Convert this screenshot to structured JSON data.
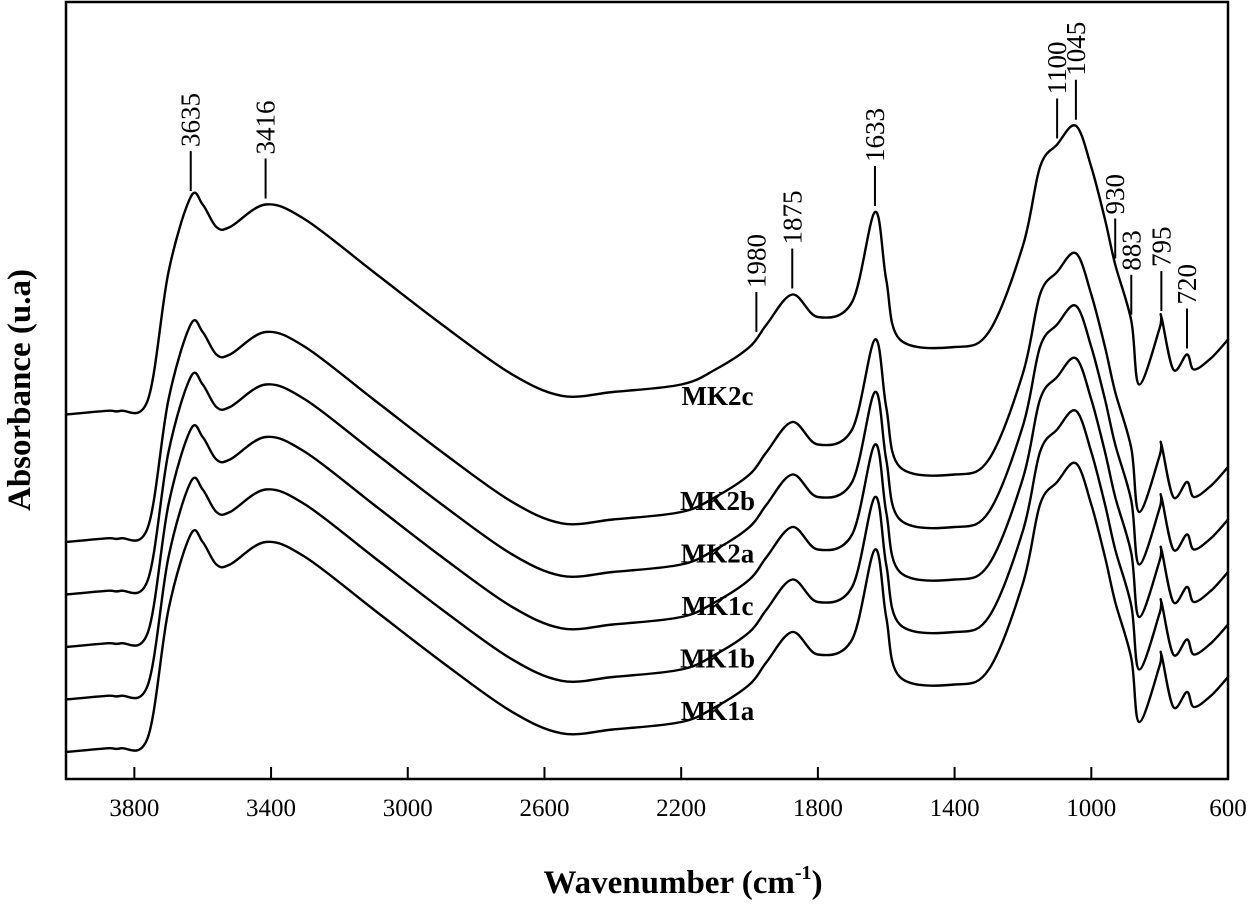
{
  "chart_data": {
    "type": "line",
    "title": "",
    "xlabel": "Wavenumber (cm",
    "xlabel_sup": "-1",
    "xlabel_end": ")",
    "ylabel": "Absorbance (u.a)",
    "xlim": [
      4000,
      600
    ],
    "x_reversed": true,
    "grid": false,
    "x_ticks": [
      3800,
      3400,
      3000,
      2600,
      2200,
      1800,
      1400,
      1000,
      600
    ],
    "y_ticks": [],
    "series": [
      {
        "name": "MK1a",
        "x": [
          4000,
          3880,
          3840,
          3760,
          3700,
          3635,
          3600,
          3560,
          3520,
          3416,
          3300,
          3100,
          2900,
          2700,
          2550,
          2400,
          2200,
          2100,
          2000,
          1950,
          1875,
          1800,
          1700,
          1633,
          1600,
          1560,
          1400,
          1300,
          1200,
          1150,
          1100,
          1045,
          1000,
          960,
          930,
          883,
          860,
          800,
          795,
          760,
          720,
          700,
          650,
          600
        ],
        "y": [
          0.0,
          0.01,
          0.01,
          0.04,
          0.38,
          0.58,
          0.56,
          0.5,
          0.5,
          0.56,
          0.52,
          0.38,
          0.24,
          0.11,
          0.05,
          0.06,
          0.08,
          0.12,
          0.18,
          0.24,
          0.32,
          0.26,
          0.3,
          0.54,
          0.36,
          0.2,
          0.18,
          0.22,
          0.45,
          0.66,
          0.72,
          0.77,
          0.66,
          0.52,
          0.4,
          0.25,
          0.08,
          0.23,
          0.26,
          0.12,
          0.16,
          0.12,
          0.15,
          0.2
        ]
      },
      {
        "name": "MK1b",
        "x": [
          4000,
          3880,
          3840,
          3760,
          3700,
          3635,
          3600,
          3560,
          3520,
          3416,
          3300,
          3100,
          2900,
          2700,
          2550,
          2400,
          2200,
          2100,
          2000,
          1950,
          1875,
          1800,
          1700,
          1633,
          1600,
          1560,
          1400,
          1300,
          1200,
          1150,
          1100,
          1045,
          1000,
          960,
          930,
          883,
          860,
          800,
          795,
          760,
          720,
          700,
          650,
          600
        ],
        "y": [
          0.14,
          0.15,
          0.15,
          0.18,
          0.52,
          0.72,
          0.7,
          0.64,
          0.64,
          0.7,
          0.66,
          0.52,
          0.38,
          0.25,
          0.19,
          0.2,
          0.22,
          0.26,
          0.32,
          0.38,
          0.46,
          0.4,
          0.44,
          0.68,
          0.5,
          0.34,
          0.32,
          0.36,
          0.59,
          0.8,
          0.86,
          0.91,
          0.8,
          0.66,
          0.54,
          0.39,
          0.22,
          0.37,
          0.4,
          0.26,
          0.3,
          0.26,
          0.29,
          0.34
        ]
      },
      {
        "name": "MK1c",
        "x": [
          4000,
          3880,
          3840,
          3760,
          3700,
          3635,
          3600,
          3560,
          3520,
          3416,
          3300,
          3100,
          2900,
          2700,
          2550,
          2400,
          2200,
          2100,
          2000,
          1950,
          1875,
          1800,
          1700,
          1633,
          1600,
          1560,
          1400,
          1300,
          1200,
          1150,
          1100,
          1045,
          1000,
          960,
          930,
          883,
          860,
          800,
          795,
          760,
          720,
          700,
          650,
          600
        ],
        "y": [
          0.28,
          0.29,
          0.29,
          0.32,
          0.66,
          0.86,
          0.84,
          0.78,
          0.78,
          0.84,
          0.8,
          0.66,
          0.52,
          0.39,
          0.33,
          0.34,
          0.36,
          0.4,
          0.46,
          0.52,
          0.6,
          0.54,
          0.58,
          0.82,
          0.64,
          0.48,
          0.46,
          0.5,
          0.73,
          0.94,
          1.0,
          1.05,
          0.94,
          0.8,
          0.68,
          0.53,
          0.36,
          0.51,
          0.54,
          0.4,
          0.44,
          0.4,
          0.43,
          0.48
        ]
      },
      {
        "name": "MK2a",
        "x": [
          4000,
          3880,
          3840,
          3760,
          3700,
          3635,
          3600,
          3560,
          3520,
          3416,
          3300,
          3100,
          2900,
          2700,
          2550,
          2400,
          2200,
          2100,
          2000,
          1950,
          1875,
          1800,
          1700,
          1633,
          1600,
          1560,
          1400,
          1300,
          1200,
          1150,
          1100,
          1045,
          1000,
          960,
          930,
          883,
          860,
          800,
          795,
          760,
          720,
          700,
          650,
          600
        ],
        "y": [
          0.42,
          0.43,
          0.43,
          0.46,
          0.8,
          1.0,
          0.98,
          0.92,
          0.92,
          0.98,
          0.94,
          0.8,
          0.66,
          0.53,
          0.47,
          0.48,
          0.5,
          0.54,
          0.6,
          0.66,
          0.74,
          0.68,
          0.72,
          0.96,
          0.78,
          0.62,
          0.6,
          0.64,
          0.87,
          1.08,
          1.14,
          1.19,
          1.08,
          0.94,
          0.82,
          0.67,
          0.5,
          0.65,
          0.68,
          0.54,
          0.58,
          0.54,
          0.57,
          0.62
        ]
      },
      {
        "name": "MK2b",
        "x": [
          4000,
          3880,
          3840,
          3760,
          3700,
          3635,
          3600,
          3560,
          3520,
          3416,
          3300,
          3100,
          2900,
          2700,
          2550,
          2400,
          2200,
          2100,
          2000,
          1950,
          1875,
          1800,
          1700,
          1633,
          1600,
          1560,
          1400,
          1300,
          1200,
          1150,
          1100,
          1045,
          1000,
          960,
          930,
          883,
          860,
          800,
          795,
          760,
          720,
          700,
          650,
          600
        ],
        "y": [
          0.56,
          0.57,
          0.57,
          0.6,
          0.94,
          1.14,
          1.12,
          1.06,
          1.06,
          1.12,
          1.08,
          0.94,
          0.8,
          0.67,
          0.61,
          0.62,
          0.64,
          0.68,
          0.74,
          0.8,
          0.88,
          0.82,
          0.86,
          1.1,
          0.92,
          0.76,
          0.74,
          0.78,
          1.01,
          1.22,
          1.28,
          1.33,
          1.22,
          1.08,
          0.96,
          0.81,
          0.64,
          0.79,
          0.82,
          0.68,
          0.72,
          0.68,
          0.71,
          0.76
        ]
      },
      {
        "name": "MK2c",
        "x": [
          4000,
          3880,
          3840,
          3760,
          3700,
          3635,
          3600,
          3560,
          3520,
          3416,
          3300,
          3100,
          2900,
          2700,
          2550,
          2400,
          2200,
          2100,
          2000,
          1950,
          1875,
          1800,
          1700,
          1633,
          1600,
          1560,
          1400,
          1300,
          1200,
          1150,
          1100,
          1045,
          1000,
          960,
          930,
          883,
          860,
          800,
          795,
          760,
          720,
          700,
          650,
          600
        ],
        "y": [
          0.9,
          0.91,
          0.91,
          0.94,
          1.28,
          1.48,
          1.46,
          1.4,
          1.4,
          1.46,
          1.42,
          1.28,
          1.14,
          1.01,
          0.95,
          0.96,
          0.98,
          1.02,
          1.08,
          1.14,
          1.22,
          1.16,
          1.2,
          1.44,
          1.26,
          1.1,
          1.08,
          1.12,
          1.35,
          1.56,
          1.62,
          1.67,
          1.56,
          1.42,
          1.3,
          1.15,
          0.98,
          1.13,
          1.16,
          1.02,
          1.06,
          1.02,
          1.05,
          1.1
        ]
      }
    ],
    "series_labels": [
      {
        "text": "MK1a",
        "x": 2000,
        "y": 0.11
      },
      {
        "text": "MK1b",
        "x": 2000,
        "y": 0.25
      },
      {
        "text": "MK1c",
        "x": 2000,
        "y": 0.39
      },
      {
        "text": "MK2a",
        "x": 2000,
        "y": 0.53
      },
      {
        "text": "MK2b",
        "x": 2000,
        "y": 0.67
      },
      {
        "text": "MK2c",
        "x": 2000,
        "y": 0.95
      }
    ],
    "peak_annotations": [
      {
        "label": "3635",
        "x": 3635
      },
      {
        "label": "3416",
        "x": 3416
      },
      {
        "label": "1980",
        "x": 1980
      },
      {
        "label": "1875",
        "x": 1875
      },
      {
        "label": "1633",
        "x": 1633
      },
      {
        "label": "1100",
        "x": 1100
      },
      {
        "label": "1045",
        "x": 1045
      },
      {
        "label": "930",
        "x": 930
      },
      {
        "label": "883",
        "x": 883
      },
      {
        "label": "795",
        "x": 795
      },
      {
        "label": "720",
        "x": 720
      }
    ]
  }
}
